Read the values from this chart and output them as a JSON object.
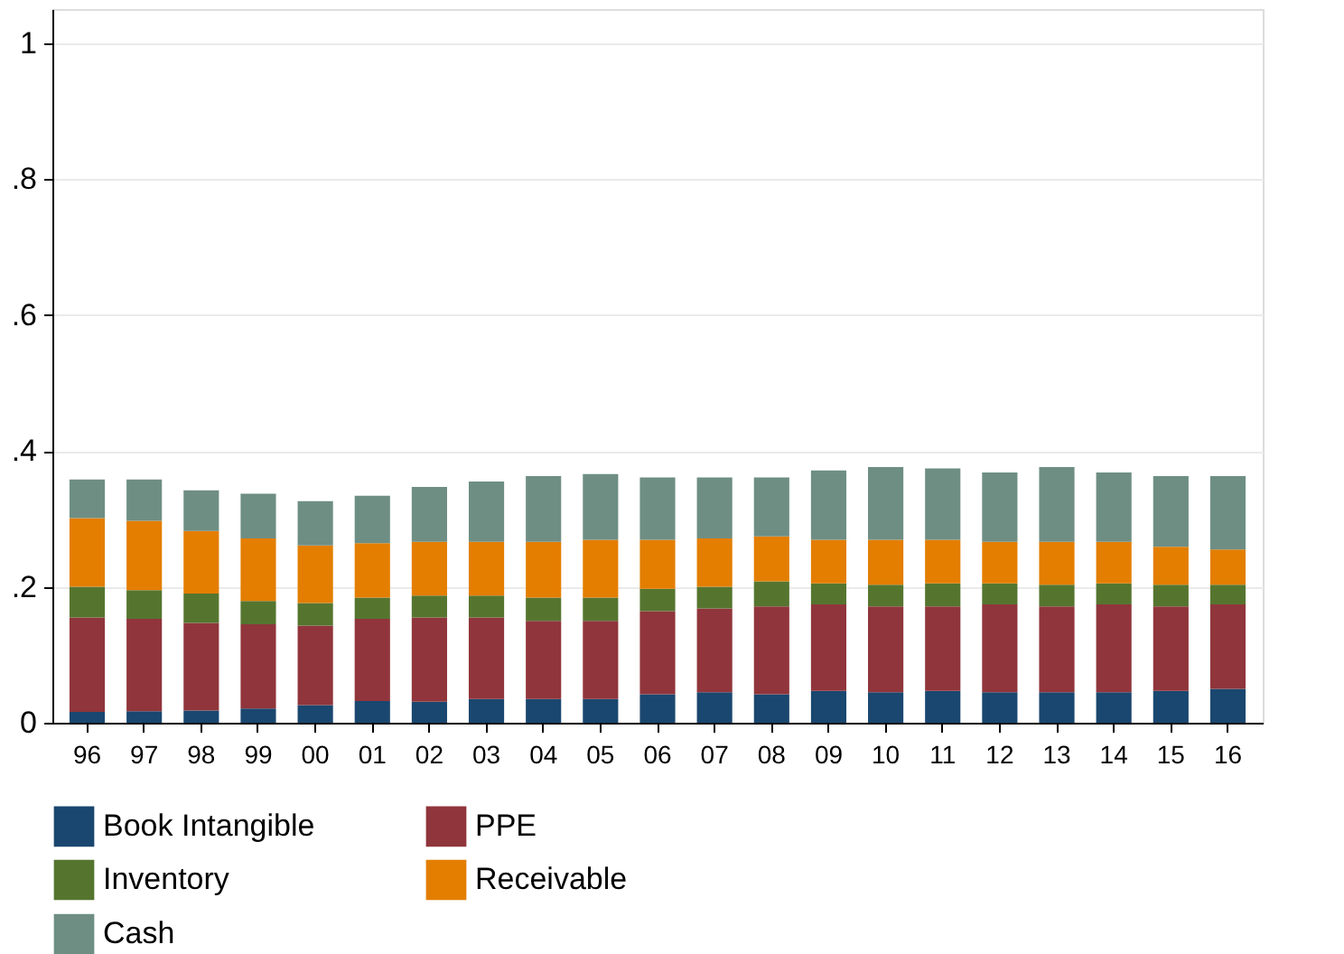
{
  "chart_data": {
    "type": "bar",
    "stacked": true,
    "categories": [
      "96",
      "97",
      "98",
      "99",
      "00",
      "01",
      "02",
      "03",
      "04",
      "05",
      "06",
      "07",
      "08",
      "09",
      "10",
      "11",
      "12",
      "13",
      "14",
      "15",
      "16"
    ],
    "series": [
      {
        "name": "Book Intangible",
        "color": "#1a476f",
        "values": [
          0.016,
          0.017,
          0.018,
          0.021,
          0.026,
          0.032,
          0.031,
          0.035,
          0.035,
          0.035,
          0.042,
          0.045,
          0.042,
          0.047,
          0.045,
          0.047,
          0.045,
          0.045,
          0.045,
          0.047,
          0.05
        ]
      },
      {
        "name": "PPE",
        "color": "#90353b",
        "values": [
          0.139,
          0.136,
          0.129,
          0.124,
          0.117,
          0.121,
          0.124,
          0.12,
          0.115,
          0.115,
          0.122,
          0.123,
          0.129,
          0.127,
          0.126,
          0.124,
          0.129,
          0.126,
          0.129,
          0.124,
          0.124
        ]
      },
      {
        "name": "Inventory",
        "color": "#55752f",
        "values": [
          0.045,
          0.042,
          0.043,
          0.034,
          0.033,
          0.031,
          0.032,
          0.032,
          0.034,
          0.034,
          0.033,
          0.032,
          0.037,
          0.031,
          0.032,
          0.034,
          0.031,
          0.032,
          0.031,
          0.032,
          0.029
        ]
      },
      {
        "name": "Receivable",
        "color": "#e37e00",
        "values": [
          0.101,
          0.102,
          0.092,
          0.092,
          0.085,
          0.08,
          0.079,
          0.079,
          0.082,
          0.085,
          0.072,
          0.071,
          0.066,
          0.064,
          0.066,
          0.064,
          0.061,
          0.063,
          0.061,
          0.056,
          0.052
        ]
      },
      {
        "name": "Cash",
        "color": "#6e8e84",
        "values": [
          0.057,
          0.061,
          0.06,
          0.066,
          0.065,
          0.07,
          0.081,
          0.089,
          0.097,
          0.097,
          0.092,
          0.09,
          0.087,
          0.102,
          0.107,
          0.105,
          0.102,
          0.11,
          0.102,
          0.104,
          0.108
        ]
      }
    ],
    "ylim": [
      0,
      1.05
    ],
    "yticks": [
      0,
      {
        "value": 0.2,
        "label": ".2"
      },
      {
        "value": 0.4,
        "label": ".4"
      },
      {
        "value": 0.6,
        "label": ".6"
      },
      {
        "value": 0.8,
        "label": ".8"
      },
      1
    ],
    "grid": "y",
    "legend": "bottom"
  }
}
